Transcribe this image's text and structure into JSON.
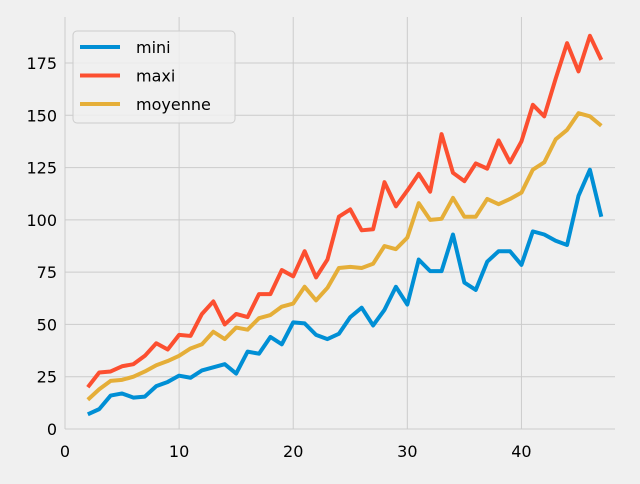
{
  "chart_data": {
    "type": "line",
    "title": "",
    "xlabel": "",
    "ylabel": "",
    "xlim": [
      0,
      48.2
    ],
    "ylim": [
      0,
      197
    ],
    "xticks": [
      0,
      10,
      20,
      30,
      40
    ],
    "yticks": [
      0,
      25,
      50,
      75,
      100,
      125,
      150,
      175
    ],
    "grid": true,
    "legend_position": "top-left",
    "x": [
      2,
      3,
      4,
      5,
      6,
      7,
      8,
      9,
      10,
      11,
      12,
      13,
      14,
      15,
      16,
      17,
      18,
      19,
      20,
      21,
      22,
      23,
      24,
      25,
      26,
      27,
      28,
      29,
      30,
      31,
      32,
      33,
      34,
      35,
      36,
      37,
      38,
      39,
      40,
      41,
      42,
      43,
      44,
      45,
      46,
      47
    ],
    "series": [
      {
        "name": "mini",
        "color": "#008fd5",
        "values": [
          7,
          9.5,
          16,
          17,
          15,
          15.5,
          20.5,
          22.5,
          25.5,
          24.5,
          28,
          29.5,
          31,
          26.5,
          37,
          36,
          44,
          40.5,
          51,
          50.5,
          45,
          43,
          45.5,
          53.5,
          58,
          49.5,
          57,
          68,
          59.5,
          81,
          75.5,
          75.5,
          93,
          70,
          66.5,
          80,
          85,
          85,
          78.5,
          94.5,
          93,
          90,
          88,
          111.5,
          124,
          101.5
        ]
      },
      {
        "name": "maxi",
        "color": "#fc4f30",
        "values": [
          20,
          27,
          27.5,
          30,
          31,
          35,
          41,
          38,
          45,
          44.5,
          55,
          61,
          50,
          55,
          53.5,
          64.5,
          64.5,
          76,
          73,
          85,
          72.5,
          81,
          101.5,
          105,
          95,
          95.5,
          118,
          106.5,
          114,
          122,
          113.5,
          141,
          122.5,
          118.5,
          127,
          124.5,
          138,
          127.5,
          137.5,
          155,
          149.5,
          167.5,
          184.5,
          171,
          188,
          176.5
        ]
      },
      {
        "name": "moyenne",
        "color": "#e5ae38",
        "values": [
          14,
          19,
          23,
          23.5,
          25,
          27.5,
          30.5,
          32.5,
          35,
          38.5,
          40.5,
          46.5,
          43,
          48.5,
          47.5,
          53,
          54.5,
          58.5,
          60,
          68,
          61.5,
          67.5,
          77,
          77.5,
          77,
          79,
          87.5,
          86,
          91.5,
          108,
          100,
          100.5,
          110.5,
          101.5,
          101.5,
          110,
          107.5,
          110,
          113,
          124,
          127.5,
          138.5,
          143,
          151,
          149.5,
          145
        ]
      }
    ]
  }
}
